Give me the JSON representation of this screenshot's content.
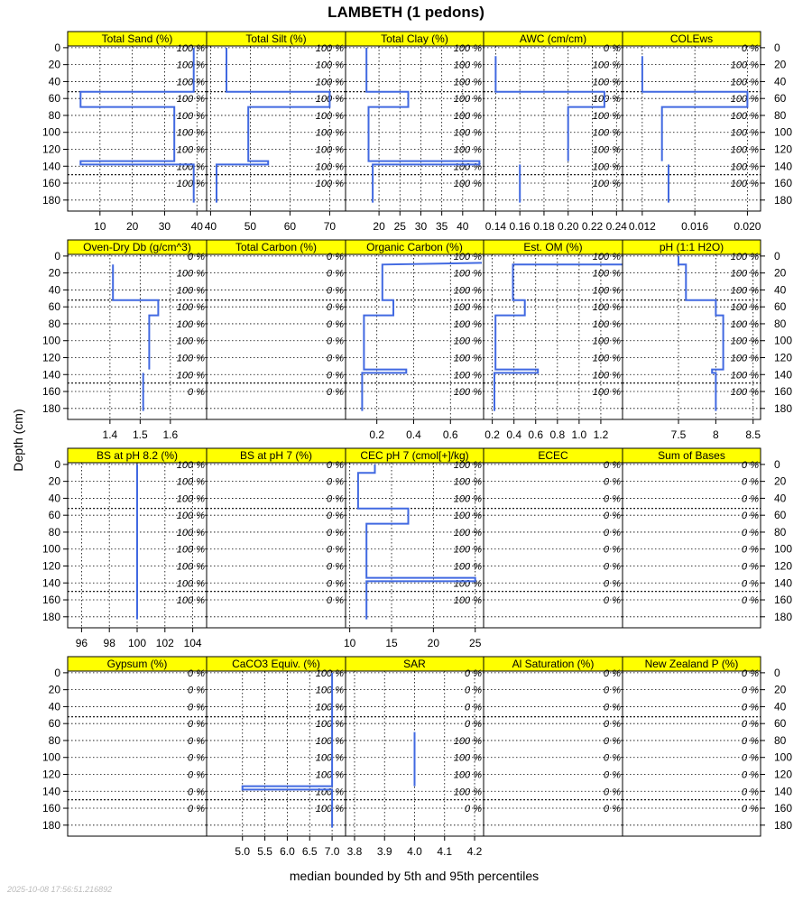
{
  "chart_title": "LAMBETH (1 pedons)",
  "ylabel": "Depth (cm)",
  "xlabel": "median bounded by 5th and 95th percentiles",
  "timestamp": "2025-10-08 17:56:51.216892",
  "colors": {
    "line": "#4169e1",
    "strip": "#ffff00",
    "grid": "#000000"
  },
  "depth_ticks": [
    0,
    20,
    40,
    60,
    80,
    100,
    120,
    140,
    160,
    180
  ],
  "chart_data": {
    "type": "line",
    "title": "LAMBETH (1 pedons)",
    "ylabel": "Depth (cm)",
    "xlabel": "median bounded by 5th and 95th percentiles",
    "ylim": [
      193,
      -2
    ],
    "grid": true,
    "panels": [
      {
        "label": "Total Sand (%)",
        "xlim": [
          0,
          43
        ],
        "ticks": [
          10,
          20,
          30,
          40
        ],
        "profile": [
          [
            39,
            0
          ],
          [
            39,
            52
          ],
          [
            4,
            52
          ],
          [
            4,
            70
          ],
          [
            33,
            70
          ],
          [
            33,
            134
          ],
          [
            4,
            134
          ],
          [
            4,
            138
          ],
          [
            39,
            138
          ],
          [
            39,
            183
          ]
        ],
        "pct": [
          "100 %",
          "100 %",
          "100 %",
          "100 %",
          "100 %",
          "100 %",
          "100 %",
          "100 %",
          "100 %"
        ]
      },
      {
        "label": "Total Silt (%)",
        "xlim": [
          39,
          74
        ],
        "ticks": [
          40,
          50,
          60,
          70
        ],
        "profile": [
          [
            44,
            0
          ],
          [
            44,
            52
          ],
          [
            70,
            52
          ],
          [
            70,
            70
          ],
          [
            49.5,
            70
          ],
          [
            49.5,
            134
          ],
          [
            54.5,
            134
          ],
          [
            54.5,
            138
          ],
          [
            41.5,
            138
          ],
          [
            41.5,
            183
          ]
        ],
        "pct": [
          "100 %",
          "100 %",
          "100 %",
          "100 %",
          "100 %",
          "100 %",
          "100 %",
          "100 %",
          "100 %"
        ]
      },
      {
        "label": "Total Clay (%)",
        "xlim": [
          12,
          45
        ],
        "ticks": [
          20,
          25,
          30,
          35,
          40
        ],
        "profile": [
          [
            17,
            0
          ],
          [
            17,
            52
          ],
          [
            27,
            52
          ],
          [
            27,
            70
          ],
          [
            17.5,
            70
          ],
          [
            17.5,
            134
          ],
          [
            44,
            134
          ],
          [
            44,
            138
          ],
          [
            18.5,
            138
          ],
          [
            18.5,
            183
          ]
        ],
        "pct": [
          "100 %",
          "100 %",
          "100 %",
          "100 %",
          "100 %",
          "100 %",
          "100 %",
          "100 %",
          "100 %"
        ]
      },
      {
        "label": "AWC (cm/cm)",
        "xlim": [
          0.13,
          0.245
        ],
        "ticks": [
          0.14,
          0.16,
          0.18,
          0.2,
          0.22,
          0.24
        ],
        "tick_labels": [
          "0.14",
          "0.16",
          "0.18",
          "0.20",
          "0.22",
          "0.24"
        ],
        "profile": [
          [
            0.14,
            10
          ],
          [
            0.14,
            52
          ],
          [
            0.23,
            52
          ],
          [
            0.23,
            70
          ],
          [
            0.2,
            70
          ],
          [
            0.2,
            134
          ]
        ],
        "segments": [
          [
            [
              0.16,
              138
            ],
            [
              0.16,
              183
            ]
          ]
        ],
        "pct": [
          "0 %",
          "100 %",
          "100 %",
          "100 %",
          "100 %",
          "100 %",
          "100 %",
          "100 %",
          "100 %"
        ]
      },
      {
        "label": "COLEws",
        "xlim": [
          0.0105,
          0.021
        ],
        "ticks": [
          0.012,
          0.016,
          0.02
        ],
        "tick_labels": [
          "0.012",
          "0.016",
          "0.020"
        ],
        "profile": [
          [
            0.012,
            10
          ],
          [
            0.012,
            52
          ],
          [
            0.02,
            52
          ],
          [
            0.02,
            70
          ],
          [
            0.0135,
            70
          ],
          [
            0.0135,
            134
          ]
        ],
        "segments": [
          [
            [
              0.014,
              138
            ],
            [
              0.014,
              183
            ]
          ]
        ],
        "pct": [
          "0 %",
          "100 %",
          "100 %",
          "100 %",
          "100 %",
          "100 %",
          "100 %",
          "100 %",
          "100 %"
        ]
      },
      {
        "label": "Oven-Dry Db (g/cm^3)",
        "xlim": [
          1.26,
          1.72
        ],
        "ticks": [
          1.4,
          1.5,
          1.6
        ],
        "profile": [
          [
            1.41,
            10
          ],
          [
            1.41,
            52
          ],
          [
            1.56,
            52
          ],
          [
            1.56,
            70
          ],
          [
            1.53,
            70
          ],
          [
            1.53,
            134
          ]
        ],
        "segments": [
          [
            [
              1.51,
              138
            ],
            [
              1.51,
              183
            ]
          ]
        ],
        "pct": [
          "0 %",
          "100 %",
          "100 %",
          "100 %",
          "100 %",
          "100 %",
          "100 %",
          "100 %",
          "0 %"
        ]
      },
      {
        "label": "Total Carbon (%)",
        "xlim": [
          0,
          1
        ],
        "ticks": [],
        "profile": [],
        "pct": [
          "0 %",
          "0 %",
          "0 %",
          "0 %",
          "0 %",
          "0 %",
          "0 %",
          "0 %",
          "0 %"
        ]
      },
      {
        "label": "Organic Carbon (%)",
        "xlim": [
          0.03,
          0.78
        ],
        "ticks": [
          0.2,
          0.4,
          0.6
        ],
        "profile": [
          [
            0.77,
            8
          ],
          [
            0.23,
            10
          ],
          [
            0.23,
            52
          ],
          [
            0.29,
            52
          ],
          [
            0.29,
            70
          ],
          [
            0.13,
            70
          ],
          [
            0.13,
            134
          ],
          [
            0.36,
            134
          ],
          [
            0.36,
            138
          ],
          [
            0.12,
            138
          ],
          [
            0.12,
            183
          ]
        ],
        "pct": [
          "100 %",
          "100 %",
          "100 %",
          "100 %",
          "100 %",
          "100 %",
          "100 %",
          "100 %",
          "100 %"
        ]
      },
      {
        "label": "Est. OM (%)",
        "xlim": [
          0.12,
          1.4
        ],
        "ticks": [
          0.2,
          0.4,
          0.6,
          0.8,
          1,
          1.2
        ],
        "tick_labels": [
          "0.2",
          "0.4",
          "0.6",
          "0.8",
          "1.0",
          "1.2"
        ],
        "profile": [
          [
            1.4,
            10
          ],
          [
            0.39,
            10
          ],
          [
            0.39,
            52
          ],
          [
            0.5,
            52
          ],
          [
            0.5,
            70
          ],
          [
            0.23,
            70
          ],
          [
            0.23,
            134
          ],
          [
            0.62,
            134
          ],
          [
            0.62,
            138
          ],
          [
            0.22,
            138
          ],
          [
            0.22,
            183
          ]
        ],
        "pct": [
          "100 %",
          "100 %",
          "100 %",
          "100 %",
          "100 %",
          "100 %",
          "100 %",
          "100 %",
          "100 %"
        ]
      },
      {
        "label": "pH (1:1 H2O)",
        "xlim": [
          6.75,
          8.6
        ],
        "ticks": [
          7.5,
          8,
          8.5
        ],
        "profile": [
          [
            7.5,
            0
          ],
          [
            7.5,
            10
          ],
          [
            7.6,
            10
          ],
          [
            7.6,
            52
          ],
          [
            8,
            52
          ],
          [
            8,
            70
          ],
          [
            8.1,
            70
          ],
          [
            8.1,
            134
          ],
          [
            7.95,
            134
          ],
          [
            7.95,
            138
          ],
          [
            8,
            138
          ],
          [
            8,
            183
          ]
        ],
        "pct": [
          "100 %",
          "100 %",
          "100 %",
          "100 %",
          "100 %",
          "100 %",
          "100 %",
          "100 %",
          "100 %"
        ]
      },
      {
        "label": "BS at pH 8.2 (%)",
        "xlim": [
          95,
          105
        ],
        "ticks": [
          96,
          98,
          100,
          102,
          104
        ],
        "profile": [
          [
            100,
            0
          ],
          [
            100,
            183
          ]
        ],
        "pct": [
          "100 %",
          "100 %",
          "100 %",
          "100 %",
          "100 %",
          "100 %",
          "100 %",
          "100 %",
          "100 %"
        ]
      },
      {
        "label": "BS at pH 7 (%)",
        "xlim": [
          0,
          1
        ],
        "ticks": [],
        "profile": [],
        "pct": [
          "0 %",
          "0 %",
          "0 %",
          "0 %",
          "0 %",
          "0 %",
          "0 %",
          "0 %",
          "0 %"
        ]
      },
      {
        "label": "CEC pH 7 (cmol[+]/kg)",
        "xlim": [
          9.5,
          26
        ],
        "ticks": [
          10,
          15,
          20,
          25
        ],
        "profile": [
          [
            13,
            0
          ],
          [
            13,
            10
          ],
          [
            11,
            10
          ],
          [
            11,
            52
          ],
          [
            17,
            52
          ],
          [
            17,
            70
          ],
          [
            12,
            70
          ],
          [
            12,
            134
          ],
          [
            25,
            134
          ],
          [
            25,
            138
          ],
          [
            12,
            138
          ],
          [
            12,
            183
          ]
        ],
        "pct": [
          "100 %",
          "100 %",
          "100 %",
          "100 %",
          "100 %",
          "100 %",
          "100 %",
          "100 %",
          "100 %"
        ]
      },
      {
        "label": "ECEC",
        "xlim": [
          0,
          1
        ],
        "ticks": [],
        "profile": [],
        "pct": [
          "0 %",
          "0 %",
          "0 %",
          "0 %",
          "0 %",
          "0 %",
          "0 %",
          "0 %",
          "0 %"
        ]
      },
      {
        "label": "Sum of Bases",
        "xlim": [
          0,
          1
        ],
        "ticks": [],
        "profile": [],
        "pct": [
          "0 %",
          "0 %",
          "0 %",
          "0 %",
          "0 %",
          "0 %",
          "0 %",
          "0 %",
          "0 %"
        ]
      },
      {
        "label": "Gypsum (%)",
        "xlim": [
          0,
          1
        ],
        "ticks": [],
        "profile": [],
        "pct": [
          "0 %",
          "0 %",
          "0 %",
          "0 %",
          "0 %",
          "0 %",
          "0 %",
          "0 %",
          "0 %"
        ]
      },
      {
        "label": "CaCO3 Equiv. (%)",
        "xlim": [
          4.2,
          7.3
        ],
        "ticks": [
          5,
          5.5,
          6,
          6.5,
          7
        ],
        "tick_labels": [
          "5.0",
          "5.5",
          "6.0",
          "6.5",
          "7.0"
        ],
        "profile": [
          [
            7,
            0
          ],
          [
            7,
            134
          ],
          [
            5,
            134
          ],
          [
            5,
            138
          ],
          [
            7,
            138
          ],
          [
            7,
            183
          ]
        ],
        "pct": [
          "100 %",
          "100 %",
          "100 %",
          "100 %",
          "100 %",
          "100 %",
          "100 %",
          "100 %",
          "100 %"
        ]
      },
      {
        "label": "SAR",
        "xlim": [
          3.77,
          4.23
        ],
        "ticks": [
          3.8,
          3.9,
          4,
          4.1,
          4.2
        ],
        "tick_labels": [
          "3.8",
          "3.9",
          "4.0",
          "4.1",
          "4.2"
        ],
        "profile": [
          [
            4,
            70
          ],
          [
            4,
            134
          ]
        ],
        "pct": [
          "0 %",
          "0 %",
          "0 %",
          "0 %",
          "100 %",
          "100 %",
          "100 %",
          "100 %",
          "0 %"
        ]
      },
      {
        "label": "Al Saturation (%)",
        "xlim": [
          0,
          1
        ],
        "ticks": [],
        "profile": [],
        "pct": [
          "0 %",
          "0 %",
          "0 %",
          "0 %",
          "0 %",
          "0 %",
          "0 %",
          "0 %",
          "0 %"
        ]
      },
      {
        "label": "New Zealand P (%)",
        "xlim": [
          0,
          1
        ],
        "ticks": [],
        "profile": [],
        "pct": [
          "0 %",
          "0 %",
          "0 %",
          "0 %",
          "0 %",
          "0 %",
          "0 %",
          "0 %",
          "0 %"
        ]
      }
    ]
  }
}
